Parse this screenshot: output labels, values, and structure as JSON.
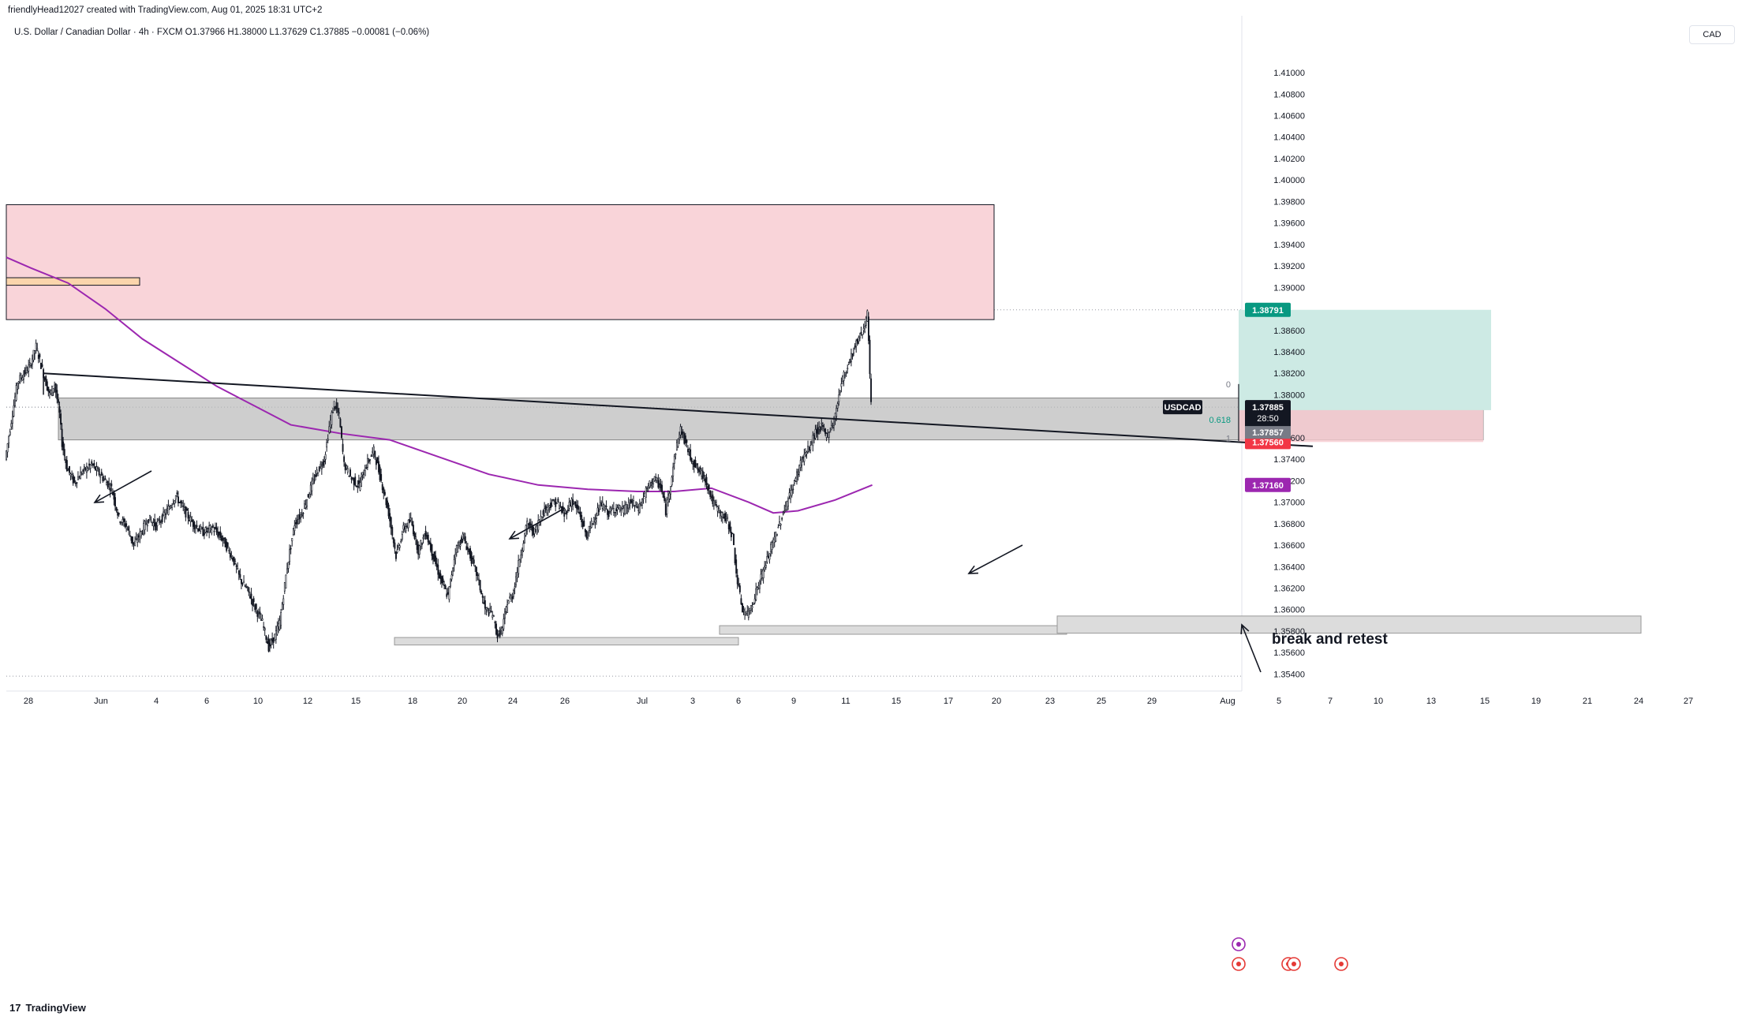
{
  "header": {
    "credit": "friendlyHead12027 created with TradingView.com, Aug 01, 2025 18:31 UTC+2",
    "symbol_line": "U.S. Dollar / Canadian Dollar · 4h · FXCM  O1.37966  H1.38000  L1.37629  C1.37885  −0.00081 (−0.06%)",
    "currency_button": "CAD"
  },
  "brand": {
    "name": "TradingView",
    "logo": "17"
  },
  "colors": {
    "supply_zone": "#f9d4d9",
    "demand_zone": "#bdbdbd",
    "ma_line": "#9c27b0",
    "target_zone": "#cdeae4",
    "stop_zone": "#f7c9cf",
    "target_label": "#089981",
    "stop_label": "#f23645",
    "price_label": "#131722",
    "candle": "#131722"
  },
  "chart_data": {
    "type": "candlestick",
    "symbol": "USDCAD",
    "timeframe": "4h",
    "y_axis": {
      "ticks": [
        "1.41000",
        "1.40800",
        "1.40600",
        "1.40400",
        "1.40200",
        "1.40000",
        "1.39800",
        "1.39600",
        "1.39400",
        "1.39200",
        "1.39000",
        "1.38600",
        "1.38400",
        "1.38200",
        "1.38000",
        "1.37600",
        "1.37400",
        "1.37200",
        "1.37000",
        "1.36800",
        "1.36600",
        "1.36400",
        "1.36200",
        "1.36000",
        "1.35800",
        "1.35600",
        "1.35400"
      ],
      "range": [
        1.353,
        1.4125
      ]
    },
    "x_axis": {
      "ticks": [
        "28",
        "Jun",
        "4",
        "6",
        "10",
        "12",
        "15",
        "18",
        "20",
        "24",
        "26",
        "Jul",
        "3",
        "6",
        "9",
        "11",
        "15",
        "17",
        "20",
        "23",
        "25",
        "29",
        "Aug",
        "5",
        "7",
        "10",
        "13",
        "15",
        "19",
        "21",
        "24",
        "27"
      ]
    },
    "price_labels": {
      "current": {
        "symbol": "USDCAD",
        "value": "1.37885",
        "countdown": "28:50"
      },
      "target": "1.38791",
      "entry": "1.37857",
      "stop": "1.37560",
      "ma": "1.37160"
    },
    "close_path": [
      [
        0,
        1.374
      ],
      [
        10,
        1.3812
      ],
      [
        20,
        1.3827
      ],
      [
        25,
        1.3845
      ],
      [
        32,
        1.3815
      ],
      [
        36,
        1.38
      ],
      [
        40,
        1.381
      ],
      [
        44,
        1.3782
      ],
      [
        46,
        1.3755
      ],
      [
        50,
        1.3732
      ],
      [
        56,
        1.3718
      ],
      [
        62,
        1.3728
      ],
      [
        70,
        1.3735
      ],
      [
        78,
        1.3724
      ],
      [
        86,
        1.3713
      ],
      [
        92,
        1.3685
      ],
      [
        98,
        1.3678
      ],
      [
        104,
        1.366
      ],
      [
        110,
        1.3672
      ],
      [
        116,
        1.3685
      ],
      [
        122,
        1.3678
      ],
      [
        130,
        1.369
      ],
      [
        138,
        1.3706
      ],
      [
        146,
        1.369
      ],
      [
        152,
        1.368
      ],
      [
        160,
        1.3672
      ],
      [
        168,
        1.3676
      ],
      [
        176,
        1.3665
      ],
      [
        184,
        1.3648
      ],
      [
        190,
        1.3628
      ],
      [
        196,
        1.3618
      ],
      [
        202,
        1.3602
      ],
      [
        208,
        1.3588
      ],
      [
        213,
        1.3565
      ],
      [
        218,
        1.3575
      ],
      [
        222,
        1.3588
      ],
      [
        228,
        1.364
      ],
      [
        234,
        1.368
      ],
      [
        240,
        1.369
      ],
      [
        246,
        1.371
      ],
      [
        252,
        1.3728
      ],
      [
        258,
        1.374
      ],
      [
        262,
        1.377
      ],
      [
        266,
        1.3792
      ],
      [
        270,
        1.378
      ],
      [
        274,
        1.3735
      ],
      [
        280,
        1.3722
      ],
      [
        286,
        1.3715
      ],
      [
        292,
        1.3735
      ],
      [
        298,
        1.3748
      ],
      [
        304,
        1.372
      ],
      [
        310,
        1.369
      ],
      [
        316,
        1.365
      ],
      [
        322,
        1.3675
      ],
      [
        328,
        1.3683
      ],
      [
        334,
        1.3655
      ],
      [
        340,
        1.3672
      ],
      [
        346,
        1.365
      ],
      [
        352,
        1.3628
      ],
      [
        358,
        1.3612
      ],
      [
        364,
        1.3655
      ],
      [
        370,
        1.3668
      ],
      [
        376,
        1.365
      ],
      [
        382,
        1.363
      ],
      [
        388,
        1.36
      ],
      [
        394,
        1.3596
      ],
      [
        398,
        1.3575
      ],
      [
        402,
        1.3582
      ],
      [
        406,
        1.3607
      ],
      [
        410,
        1.3613
      ],
      [
        416,
        1.3648
      ],
      [
        422,
        1.368
      ],
      [
        428,
        1.3672
      ],
      [
        434,
        1.369
      ],
      [
        440,
        1.3698
      ],
      [
        446,
        1.37
      ],
      [
        452,
        1.3688
      ],
      [
        458,
        1.3702
      ],
      [
        464,
        1.369
      ],
      [
        470,
        1.3668
      ],
      [
        476,
        1.3685
      ],
      [
        482,
        1.3698
      ],
      [
        488,
        1.369
      ],
      [
        494,
        1.3695
      ],
      [
        500,
        1.3692
      ],
      [
        506,
        1.37
      ],
      [
        512,
        1.3694
      ],
      [
        518,
        1.371
      ],
      [
        524,
        1.3722
      ],
      [
        530,
        1.3715
      ],
      [
        534,
        1.3692
      ],
      [
        538,
        1.3718
      ],
      [
        542,
        1.3748
      ],
      [
        546,
        1.3768
      ],
      [
        550,
        1.3755
      ],
      [
        554,
        1.3742
      ],
      [
        560,
        1.373
      ],
      [
        566,
        1.3722
      ],
      [
        572,
        1.37
      ],
      [
        578,
        1.369
      ],
      [
        584,
        1.3682
      ],
      [
        588,
        1.3668
      ],
      [
        592,
        1.3625
      ],
      [
        596,
        1.36
      ],
      [
        600,
        1.3595
      ],
      [
        604,
        1.3606
      ],
      [
        608,
        1.362
      ],
      [
        614,
        1.364
      ],
      [
        620,
        1.366
      ],
      [
        626,
        1.368
      ],
      [
        632,
        1.37
      ],
      [
        638,
        1.3718
      ],
      [
        644,
        1.374
      ],
      [
        650,
        1.375
      ],
      [
        655,
        1.3765
      ],
      [
        660,
        1.377
      ],
      [
        664,
        1.3762
      ],
      [
        670,
        1.3775
      ],
      [
        676,
        1.3812
      ],
      [
        682,
        1.383
      ],
      [
        688,
        1.3848
      ],
      [
        694,
        1.3862
      ],
      [
        697,
        1.3876
      ],
      [
        700,
        1.379
      ]
    ],
    "moving_average": [
      [
        0,
        1.3928
      ],
      [
        20,
        1.3918
      ],
      [
        50,
        1.3904
      ],
      [
        80,
        1.388
      ],
      [
        110,
        1.3852
      ],
      [
        140,
        1.383
      ],
      [
        170,
        1.3808
      ],
      [
        200,
        1.379
      ],
      [
        230,
        1.3772
      ],
      [
        270,
        1.3764
      ],
      [
        310,
        1.3758
      ],
      [
        350,
        1.3742
      ],
      [
        390,
        1.3726
      ],
      [
        430,
        1.3716
      ],
      [
        470,
        1.3712
      ],
      [
        510,
        1.371
      ],
      [
        540,
        1.371
      ],
      [
        570,
        1.3713
      ],
      [
        600,
        1.37
      ],
      [
        620,
        1.369
      ],
      [
        640,
        1.3692
      ],
      [
        670,
        1.3702
      ],
      [
        700,
        1.3716
      ]
    ],
    "annotations": {
      "text": "break and retest",
      "fib_levels": [
        "0",
        "0.618",
        "1"
      ]
    },
    "zones": {
      "supply": [
        1.387,
        1.3977
      ],
      "small_supply": [
        1.3902,
        1.3909
      ],
      "demand_main": [
        1.3758,
        1.3797
      ],
      "demand_low_1": [
        1.3567,
        1.3574
      ],
      "demand_low_2": [
        1.3577,
        1.3585
      ],
      "demand_low_3": [
        1.3578,
        1.3594
      ],
      "target_box": [
        1.37857,
        1.38791
      ],
      "stop_box": [
        1.3756,
        1.37857
      ]
    },
    "trendline": [
      [
        1.382,
        30
      ],
      [
        1.3758,
        730
      ]
    ]
  }
}
